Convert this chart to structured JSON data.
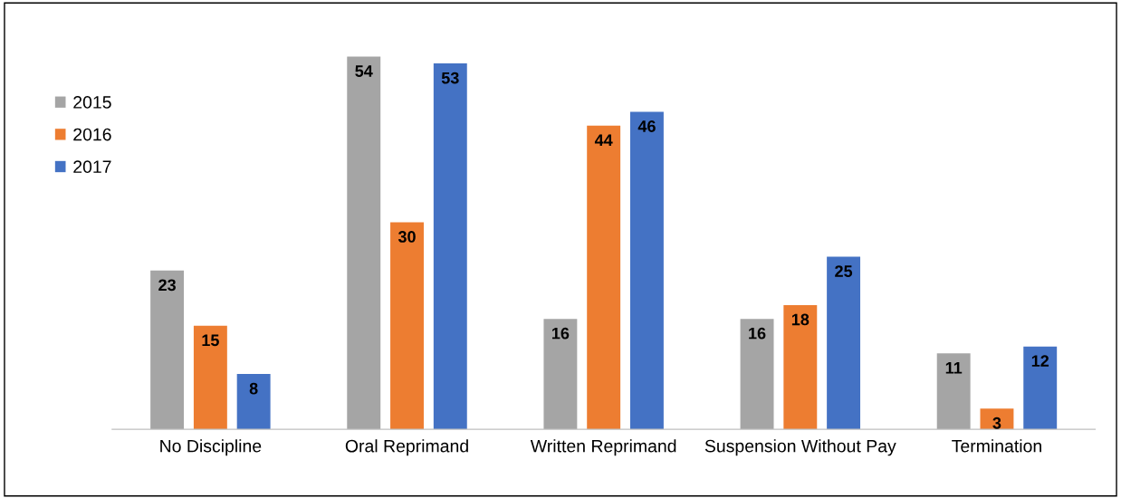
{
  "chart_data": {
    "type": "bar",
    "categories": [
      "No Discipline",
      "Oral Reprimand",
      "Written Reprimand",
      "Suspension Without Pay",
      "Termination"
    ],
    "series": [
      {
        "name": "2015",
        "color": "#a5a5a5",
        "values": [
          23,
          54,
          16,
          16,
          11
        ]
      },
      {
        "name": "2016",
        "color": "#ed7d31",
        "values": [
          15,
          30,
          44,
          18,
          3
        ]
      },
      {
        "name": "2017",
        "color": "#4472c4",
        "values": [
          8,
          53,
          46,
          25,
          12
        ]
      }
    ],
    "data_labels": true,
    "legend": "left",
    "grid": false
  }
}
